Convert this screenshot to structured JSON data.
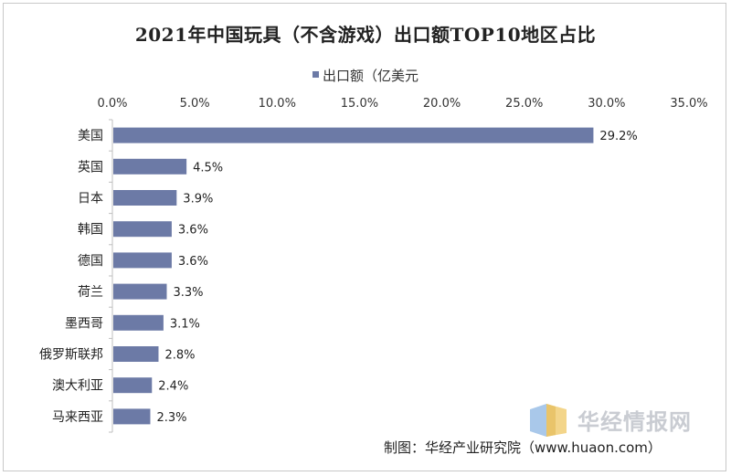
{
  "chart_data": {
    "type": "bar",
    "orientation": "horizontal",
    "title": "2021年中国玩具（不含游戏）出口额TOP10地区占比",
    "series": [
      {
        "name": "出口额（亿美元",
        "color": "#6c7aa6",
        "values": [
          29.2,
          4.5,
          3.9,
          3.6,
          3.6,
          3.3,
          3.1,
          2.8,
          2.4,
          2.3
        ]
      }
    ],
    "categories": [
      "美国",
      "英国",
      "日本",
      "韩国",
      "德国",
      "荷兰",
      "墨西哥",
      "俄罗斯联邦",
      "澳大利亚",
      "马来西亚"
    ],
    "data_labels": [
      "29.2%",
      "4.5%",
      "3.9%",
      "3.6%",
      "3.6%",
      "3.3%",
      "3.1%",
      "2.8%",
      "2.4%",
      "2.3%"
    ],
    "x_ticks": [
      "0.0%",
      "5.0%",
      "10.0%",
      "15.0%",
      "20.0%",
      "25.0%",
      "30.0%",
      "35.0%"
    ],
    "xlim": [
      0,
      35
    ],
    "x_axis_position": "top",
    "legend_position": "top",
    "grid": false
  },
  "watermark": {
    "text": "华经情报网"
  },
  "source": {
    "text": "制图：华经产业研究院（www.huaon.com）"
  }
}
